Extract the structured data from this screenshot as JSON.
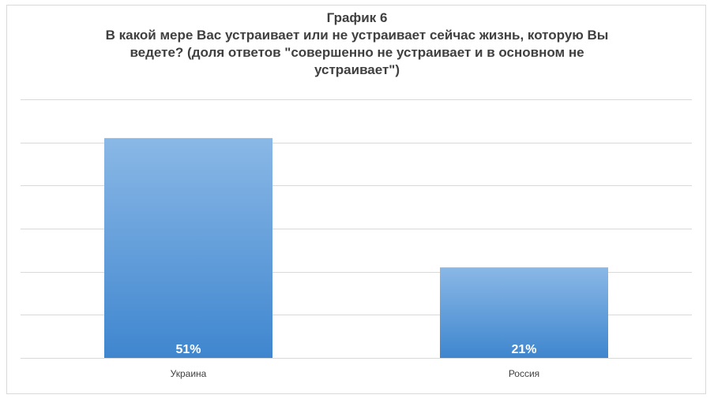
{
  "chart_data": {
    "type": "bar",
    "title": "График 6",
    "subtitle_lines": [
      "В какой мере Вас устраивает или не устраивает сейчас жизнь, которую Вы",
      "ведете? (доля ответов \"совершенно не устраивает и в основном не",
      "устраивает\")"
    ],
    "categories": [
      "Украина",
      "Россия"
    ],
    "values": [
      51,
      21
    ],
    "value_labels": [
      "51%",
      "21%"
    ],
    "ylim": [
      0,
      60
    ],
    "grid": true,
    "legend": "none",
    "xlabel": "",
    "ylabel": ""
  },
  "colors": {
    "bar_top": "#8ab8e6",
    "bar_bottom": "#3f86cf",
    "grid": "#d9d9d9",
    "text": "#404040",
    "bar_label": "#ffffff"
  }
}
